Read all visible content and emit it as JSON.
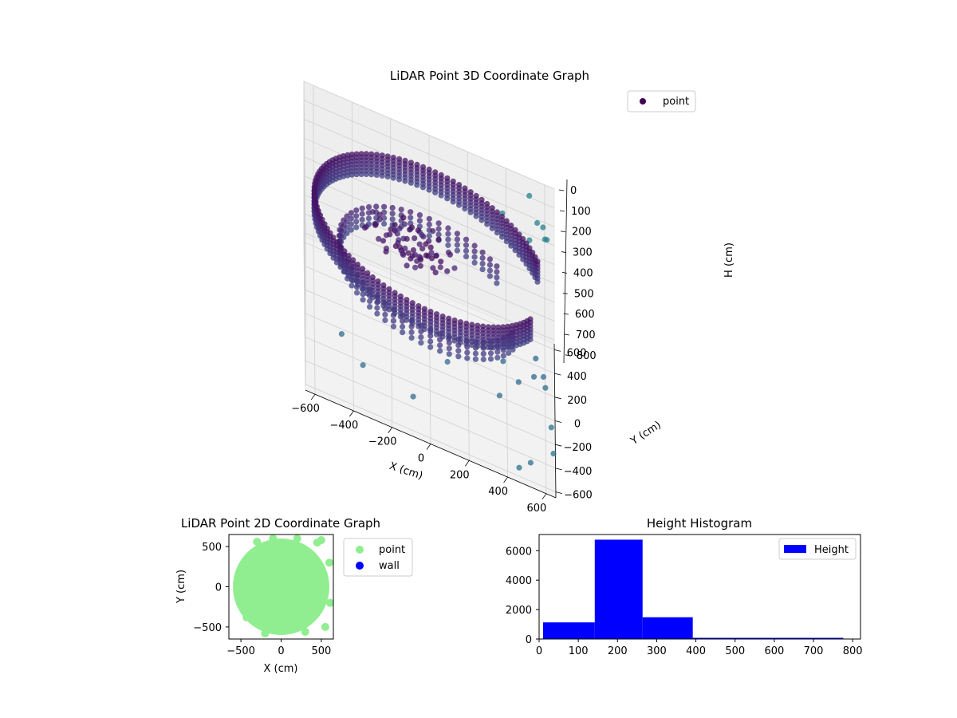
{
  "figure": {
    "background": "#ffffff"
  },
  "chart_data": [
    {
      "type": "scatter",
      "projection": "3d",
      "title": "LiDAR Point 3D Coordinate Graph",
      "xlabel": "X (cm)",
      "ylabel": "Y (cm)",
      "zlabel": "H (cm)",
      "xlim": [
        -650,
        650
      ],
      "ylim": [
        -650,
        650
      ],
      "zlim": [
        0,
        820
      ],
      "z_inverted": true,
      "xticks": [
        -600,
        -400,
        -200,
        0,
        200,
        400,
        600
      ],
      "yticks": [
        -600,
        -400,
        -200,
        0,
        200,
        400,
        600
      ],
      "zticks": [
        0,
        100,
        200,
        300,
        400,
        500,
        600,
        700,
        800
      ],
      "colormap": "viridis",
      "grid": true,
      "legend": {
        "position": "upper-right",
        "entries": [
          {
            "label": "point",
            "color": "#440154"
          }
        ]
      },
      "structure": {
        "outer_wall": {
          "radius": 600,
          "h_range": [
            150,
            270
          ]
        },
        "inner_ring": {
          "radius": 470,
          "h_range": [
            330,
            420
          ]
        },
        "central_object": {
          "x": -100,
          "y": 60,
          "h_range": [
            160,
            320
          ]
        },
        "scattered_points": [
          {
            "x": 520,
            "y": 590,
            "h": 55
          },
          {
            "x": 560,
            "y": 460,
            "h": 100
          },
          {
            "x": 600,
            "y": 430,
            "h": 150
          },
          {
            "x": 610,
            "y": 400,
            "h": 130
          },
          {
            "x": 590,
            "y": 380,
            "h": 60
          },
          {
            "x": 380,
            "y": 560,
            "h": 190
          },
          {
            "x": 520,
            "y": 430,
            "h": 190
          },
          {
            "x": 550,
            "y": 10,
            "h": 540
          },
          {
            "x": 590,
            "y": 10,
            "h": 620
          },
          {
            "x": -460,
            "y": -330,
            "h": 640
          },
          {
            "x": -350,
            "y": -420,
            "h": 700
          },
          {
            "x": -90,
            "y": -520,
            "h": 690
          },
          {
            "x": 90,
            "y": -260,
            "h": 590
          },
          {
            "x": 380,
            "y": -100,
            "h": 560
          },
          {
            "x": 460,
            "y": -140,
            "h": 610
          },
          {
            "x": 540,
            "y": -40,
            "h": 610
          },
          {
            "x": 600,
            "y": 20,
            "h": 680
          },
          {
            "x": 360,
            "y": -260,
            "h": 650
          },
          {
            "x": 460,
            "y": -560,
            "h": 800
          },
          {
            "x": 520,
            "y": -540,
            "h": 760
          },
          {
            "x": 640,
            "y": -300,
            "h": 810
          },
          {
            "x": 630,
            "y": -70,
            "h": 820
          }
        ]
      }
    },
    {
      "type": "scatter",
      "title": "LiDAR Point 2D Coordinate Graph",
      "xlabel": "X (cm)",
      "ylabel": "Y (cm)",
      "xlim": [
        -650,
        650
      ],
      "ylim": [
        -650,
        650
      ],
      "xticks": [
        -500,
        0,
        500
      ],
      "yticks": [
        -500,
        0,
        500
      ],
      "legend": {
        "position": "outside-upper-right",
        "entries": [
          {
            "label": "point",
            "color": "#90ee90"
          },
          {
            "label": "wall",
            "color": "#0000ff"
          }
        ]
      },
      "series": [
        {
          "name": "point",
          "color": "#90ee90",
          "shape": "disc",
          "radius": 600,
          "x_clip": 640
        },
        {
          "name": "wall",
          "color": "#0000ff",
          "points": []
        }
      ]
    },
    {
      "type": "bar",
      "title": "Height Histogram",
      "xlim": [
        0,
        820
      ],
      "ylim": [
        0,
        7100
      ],
      "xticks": [
        0,
        100,
        200,
        300,
        400,
        500,
        600,
        700,
        800
      ],
      "yticks": [
        0,
        2000,
        4000,
        6000
      ],
      "color": "#0000ff",
      "legend": {
        "position": "upper-right",
        "entries": [
          {
            "label": "Height",
            "color": "#0000ff"
          }
        ]
      },
      "bins": [
        {
          "start": 10,
          "end": 142,
          "count": 1130
        },
        {
          "start": 142,
          "end": 264,
          "count": 6750
        },
        {
          "start": 264,
          "end": 392,
          "count": 1480
        },
        {
          "start": 392,
          "end": 776,
          "count": 80
        }
      ]
    }
  ]
}
